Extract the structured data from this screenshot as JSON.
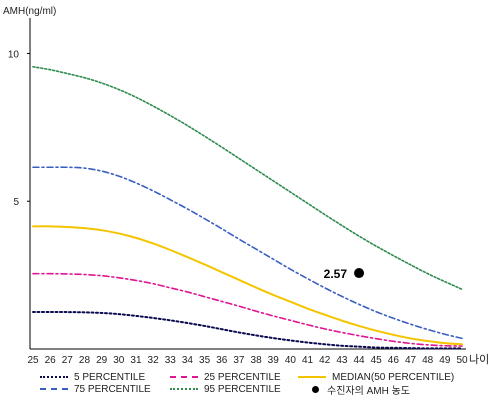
{
  "chart_data": {
    "type": "line",
    "ylabel": "AMH(ng/ml)",
    "xlabel": "나이",
    "x": [
      25,
      26,
      27,
      28,
      29,
      30,
      31,
      32,
      33,
      34,
      35,
      36,
      37,
      38,
      39,
      40,
      41,
      42,
      43,
      44,
      45,
      46,
      47,
      48,
      49,
      50
    ],
    "xlim": [
      25,
      50
    ],
    "ylim": [
      0,
      11.2
    ],
    "yticks": [
      5,
      10
    ],
    "series": [
      {
        "key": "p5",
        "name": "5 PERCENTILE",
        "color": "#0a0a50",
        "dash": "2,2.5",
        "width": 2,
        "values": [
          1.25,
          1.25,
          1.25,
          1.24,
          1.22,
          1.18,
          1.12,
          1.05,
          0.97,
          0.88,
          0.78,
          0.67,
          0.56,
          0.46,
          0.37,
          0.29,
          0.22,
          0.16,
          0.11,
          0.08,
          0.05,
          0.04,
          0.03,
          0.02,
          0.02,
          0.02
        ]
      },
      {
        "key": "p25",
        "name": "25 PERCENTILE",
        "color": "#e0158f",
        "dash": "6,3,2,3",
        "width": 1.6,
        "values": [
          2.55,
          2.55,
          2.54,
          2.52,
          2.48,
          2.41,
          2.32,
          2.21,
          2.07,
          1.93,
          1.77,
          1.61,
          1.45,
          1.28,
          1.12,
          0.97,
          0.82,
          0.68,
          0.56,
          0.45,
          0.35,
          0.26,
          0.19,
          0.14,
          0.11,
          0.1
        ]
      },
      {
        "key": "p50",
        "name": "MEDIAN(50 PERCENTILE)",
        "color": "#f5c400",
        "dash": "",
        "width": 2,
        "values": [
          4.15,
          4.15,
          4.13,
          4.09,
          4.02,
          3.91,
          3.76,
          3.57,
          3.35,
          3.11,
          2.86,
          2.6,
          2.34,
          2.08,
          1.83,
          1.6,
          1.37,
          1.16,
          0.96,
          0.78,
          0.62,
          0.48,
          0.36,
          0.27,
          0.2,
          0.16
        ]
      },
      {
        "key": "p75",
        "name": "75 PERCENTILE",
        "color": "#3a5fc0",
        "dash": "6,3,2,3",
        "width": 1.6,
        "values": [
          6.15,
          6.15,
          6.15,
          6.12,
          6.02,
          5.85,
          5.62,
          5.35,
          5.05,
          4.74,
          4.41,
          4.07,
          3.72,
          3.38,
          3.04,
          2.7,
          2.38,
          2.07,
          1.78,
          1.51,
          1.26,
          1.04,
          0.84,
          0.66,
          0.5,
          0.36
        ]
      },
      {
        "key": "p95",
        "name": "95 PERCENTILE",
        "color": "#2e8b4e",
        "dash": "2,2",
        "width": 1.6,
        "values": [
          9.55,
          9.45,
          9.32,
          9.18,
          9.0,
          8.78,
          8.52,
          8.22,
          7.9,
          7.56,
          7.2,
          6.83,
          6.45,
          6.07,
          5.69,
          5.31,
          4.93,
          4.55,
          4.18,
          3.82,
          3.48,
          3.16,
          2.85,
          2.55,
          2.28,
          2.02
        ]
      }
    ],
    "patient": {
      "name": "수진자의 AMH 농도",
      "x": 44,
      "y": 2.57,
      "label": "2.57",
      "color": "#000000"
    },
    "legend_placement": "bottom",
    "grid": false
  },
  "legend": {
    "p5": "5 PERCENTILE",
    "p25": "25 PERCENTILE",
    "p50": "MEDIAN(50 PERCENTILE)",
    "p75": "75 PERCENTILE",
    "p95": "95 PERCENTILE",
    "patient": "수진자의 AMH 농도"
  }
}
